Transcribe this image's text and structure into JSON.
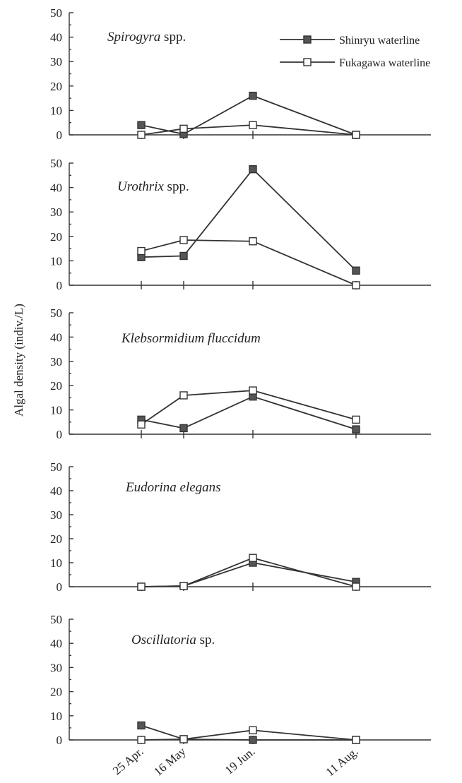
{
  "chart_data": {
    "type": "line",
    "ylabel": "Algal density (indiv./L)",
    "x": [
      "25 Apr.",
      "16 May",
      "19 Jun.",
      "11 Aug."
    ],
    "ylim": [
      0,
      50
    ],
    "yticks": [
      0,
      10,
      20,
      30,
      40,
      50
    ],
    "legend": {
      "placement": "top-right",
      "entries": [
        "Shinryu waterline",
        "Fukagawa waterline"
      ]
    },
    "colors": {
      "Shinryu waterline": "#555555",
      "Fukagawa waterline": "#ffffff"
    },
    "panels": [
      {
        "title_italic": "Spirogyra",
        "title_roman": " spp.",
        "series": [
          {
            "name": "Shinryu waterline",
            "values": [
              4,
              0.3,
              16,
              0
            ]
          },
          {
            "name": "Fukagawa waterline",
            "values": [
              0,
              2.5,
              4,
              0
            ]
          }
        ]
      },
      {
        "title_italic": "Urothrix",
        "title_roman": " spp.",
        "series": [
          {
            "name": "Shinryu waterline",
            "values": [
              11.5,
              12,
              47.5,
              6
            ]
          },
          {
            "name": "Fukagawa waterline",
            "values": [
              14,
              18.5,
              18,
              0
            ]
          }
        ]
      },
      {
        "title_italic": "Klebsormidium fluccidum",
        "title_roman": "",
        "series": [
          {
            "name": "Shinryu waterline",
            "values": [
              6,
              2.5,
              15.5,
              2
            ]
          },
          {
            "name": "Fukagawa waterline",
            "values": [
              4,
              16,
              18,
              6
            ]
          }
        ]
      },
      {
        "title_italic": "Eudorina elegans",
        "title_roman": "",
        "series": [
          {
            "name": "Shinryu waterline",
            "values": [
              0,
              0.3,
              10,
              2
            ]
          },
          {
            "name": "Fukagawa waterline",
            "values": [
              0,
              0.3,
              12,
              0
            ]
          }
        ]
      },
      {
        "title_italic": "Oscillatoria",
        "title_roman": " sp.",
        "series": [
          {
            "name": "Shinryu waterline",
            "values": [
              6,
              0.3,
              0,
              0
            ]
          },
          {
            "name": "Fukagawa waterline",
            "values": [
              0,
              0.3,
              4,
              0
            ]
          }
        ]
      }
    ]
  }
}
